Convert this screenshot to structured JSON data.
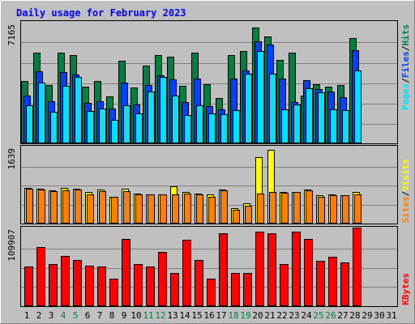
{
  "chart_data": [
    {
      "panel": "top",
      "type": "bar",
      "title": "Daily usage for February 2023",
      "x": [
        1,
        2,
        3,
        4,
        5,
        6,
        7,
        8,
        9,
        10,
        11,
        12,
        13,
        14,
        15,
        16,
        17,
        18,
        19,
        20,
        21,
        22,
        23,
        24,
        25,
        26,
        27,
        28
      ],
      "max_label": "7165",
      "ylim": [
        0,
        7165
      ],
      "grid": true,
      "legend": [
        "Pages",
        "Files",
        "Hits"
      ],
      "series": [
        {
          "name": "Hits",
          "color": "#008040",
          "values": [
            3750,
            5450,
            3500,
            5450,
            5300,
            3400,
            3750,
            2850,
            4950,
            3350,
            4700,
            5300,
            5200,
            3450,
            5450,
            3550,
            2750,
            5300,
            5550,
            6950,
            6450,
            5000,
            5450,
            2900,
            3550,
            3400,
            3500,
            6350
          ]
        },
        {
          "name": "Files",
          "color": "#0040ff",
          "values": [
            2900,
            4350,
            2550,
            4300,
            4150,
            2450,
            2550,
            2100,
            3650,
            2350,
            3500,
            4100,
            3850,
            2500,
            3900,
            2250,
            2050,
            3900,
            4400,
            6150,
            5950,
            3900,
            2500,
            3800,
            3250,
            3100,
            2800,
            5600
          ]
        },
        {
          "name": "Pages",
          "color": "#00e0ff",
          "values": [
            2300,
            3650,
            1900,
            3450,
            4000,
            1950,
            2100,
            1400,
            2300,
            1800,
            3100,
            4000,
            2900,
            1700,
            2300,
            1800,
            1750,
            2000,
            4200,
            5550,
            4200,
            2050,
            2350,
            3300,
            3050,
            2050,
            2000,
            4400
          ]
        }
      ]
    },
    {
      "panel": "middle",
      "type": "bar",
      "max_label": "1639",
      "ylim": [
        0,
        1639
      ],
      "grid": true,
      "legend": [
        "Sites",
        "Visits"
      ],
      "series": [
        {
          "name": "Visits",
          "color": "#ffff00",
          "values": [
            770,
            760,
            720,
            770,
            760,
            680,
            740,
            590,
            750,
            660,
            640,
            640,
            810,
            680,
            650,
            630,
            740,
            330,
            440,
            1450,
            1610,
            680,
            690,
            740,
            610,
            630,
            620,
            680
          ]
        },
        {
          "name": "Sites",
          "color": "#ff8000",
          "values": [
            760,
            740,
            710,
            720,
            740,
            640,
            700,
            580,
            710,
            630,
            640,
            630,
            640,
            660,
            640,
            580,
            720,
            300,
            380,
            650,
            680,
            670,
            680,
            720,
            580,
            620,
            610,
            640
          ]
        }
      ]
    },
    {
      "panel": "bottom",
      "type": "bar",
      "max_label": "109907",
      "ylim": [
        0,
        109907
      ],
      "grid": true,
      "legend": [
        "KBytes"
      ],
      "series": [
        {
          "name": "KBytes",
          "color": "#ff0000",
          "values": [
            56300,
            84400,
            59600,
            71500,
            65500,
            57600,
            57200,
            39400,
            95600,
            60000,
            57000,
            77300,
            47100,
            95300,
            66000,
            39000,
            103800,
            48000,
            46900,
            106500,
            104000,
            60200,
            106500,
            95800,
            64900,
            71000,
            62500,
            112000
          ]
        }
      ]
    }
  ],
  "x_labels": [
    {
      "text": "1",
      "weekend": false
    },
    {
      "text": "2",
      "weekend": false
    },
    {
      "text": "3",
      "weekend": false
    },
    {
      "text": "4",
      "weekend": true
    },
    {
      "text": "5",
      "weekend": true
    },
    {
      "text": "6",
      "weekend": false
    },
    {
      "text": "7",
      "weekend": false
    },
    {
      "text": "8",
      "weekend": false
    },
    {
      "text": "9",
      "weekend": false
    },
    {
      "text": "10",
      "weekend": false
    },
    {
      "text": "11",
      "weekend": true
    },
    {
      "text": "12",
      "weekend": true
    },
    {
      "text": "13",
      "weekend": false
    },
    {
      "text": "14",
      "weekend": false
    },
    {
      "text": "15",
      "weekend": false
    },
    {
      "text": "16",
      "weekend": false
    },
    {
      "text": "17",
      "weekend": false
    },
    {
      "text": "18",
      "weekend": true
    },
    {
      "text": "19",
      "weekend": true
    },
    {
      "text": "20",
      "weekend": false
    },
    {
      "text": "21",
      "weekend": false
    },
    {
      "text": "22",
      "weekend": false
    },
    {
      "text": "23",
      "weekend": false
    },
    {
      "text": "24",
      "weekend": false
    },
    {
      "text": "25",
      "weekend": true
    },
    {
      "text": "26",
      "weekend": true
    },
    {
      "text": "27",
      "weekend": false
    },
    {
      "text": "28",
      "weekend": false
    },
    {
      "text": "29",
      "weekend": false
    },
    {
      "text": "30",
      "weekend": false
    },
    {
      "text": "31",
      "weekend": false
    }
  ],
  "legend_separator": "/",
  "colors": {
    "background": "#c0c0c0",
    "panel": "#c0c0c0",
    "grid": "#808080",
    "title": "#0000ff",
    "weekday_label": "#000000",
    "weekend_label": "#008040",
    "separator": "#000000"
  }
}
